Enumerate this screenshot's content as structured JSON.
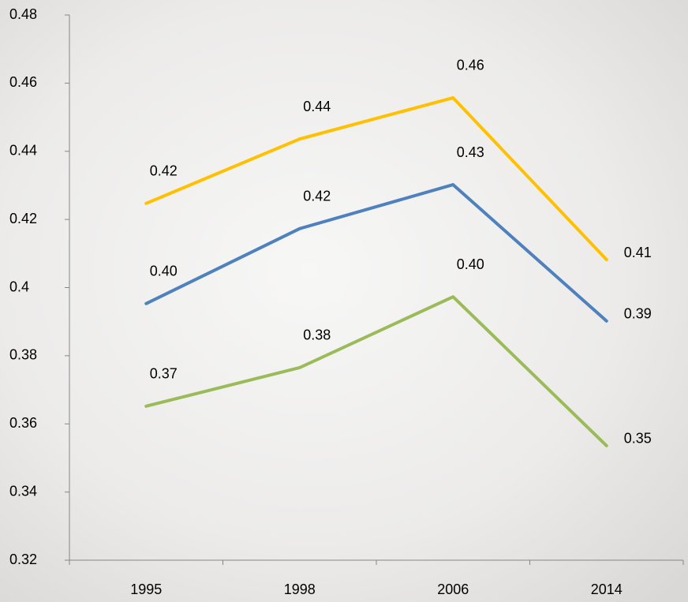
{
  "chart_data": {
    "type": "line",
    "categories": [
      "1995",
      "1998",
      "2006",
      "2014"
    ],
    "series": [
      {
        "color": "#ffc000",
        "values": [
          0.4247,
          0.4436,
          0.4557,
          0.4082
        ],
        "value_labels": [
          "0.42",
          "0.44",
          "0.46",
          "0.41"
        ]
      },
      {
        "color": "#4f81bd",
        "values": [
          0.3953,
          0.4173,
          0.4302,
          0.3902
        ],
        "value_labels": [
          "0.40",
          "0.42",
          "0.43",
          "0.39"
        ]
      },
      {
        "color": "#9bbb59",
        "values": [
          0.3652,
          0.3765,
          0.3973,
          0.3536
        ],
        "value_labels": [
          "0.37",
          "0.38",
          "0.40",
          "0.35"
        ]
      }
    ],
    "ylim": [
      0.32,
      0.48
    ],
    "yticks": [
      0.32,
      0.34,
      0.36,
      0.38,
      0.4,
      0.42,
      0.44,
      0.46,
      0.48
    ]
  }
}
